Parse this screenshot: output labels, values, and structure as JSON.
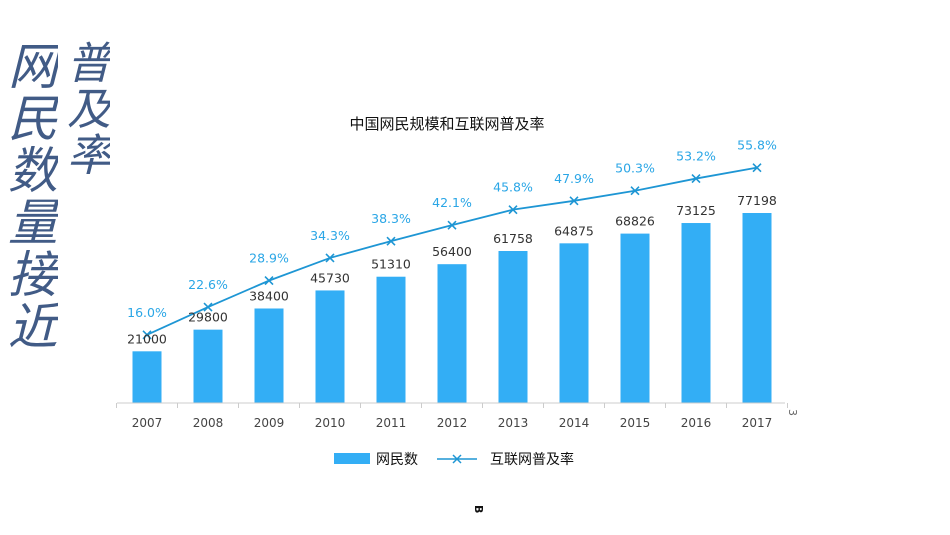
{
  "chart_data": {
    "type": "bar",
    "title": "中国网民规模和互联网普及率",
    "categories": [
      "2007",
      "2008",
      "2009",
      "2010",
      "2011",
      "2012",
      "2013",
      "2014",
      "2015",
      "2016",
      "2017"
    ],
    "series": [
      {
        "name": "网民数",
        "type": "bar",
        "color": "#33aef5",
        "values": [
          21000,
          29800,
          38400,
          45730,
          51310,
          56400,
          61758,
          64875,
          68826,
          73125,
          77198
        ]
      },
      {
        "name": "互联网普及率",
        "type": "line",
        "color": "#1e96d4",
        "marker": "x",
        "values": [
          16.0,
          22.6,
          28.9,
          34.3,
          38.3,
          42.1,
          45.8,
          47.9,
          50.3,
          53.2,
          55.8
        ],
        "labels": [
          "16.0%",
          "22.6%",
          "28.9%",
          "34.3%",
          "38.3%",
          "42.1%",
          "45.8%",
          "47.9%",
          "50.3%",
          "53.2%",
          "55.8%"
        ]
      }
    ],
    "legend": "bottom",
    "grid": false
  },
  "overlay": {
    "col1": "网民数量接近",
    "col2": "普及率"
  },
  "stray": {
    "right_mark": "3",
    "bottom_mark": "B"
  }
}
